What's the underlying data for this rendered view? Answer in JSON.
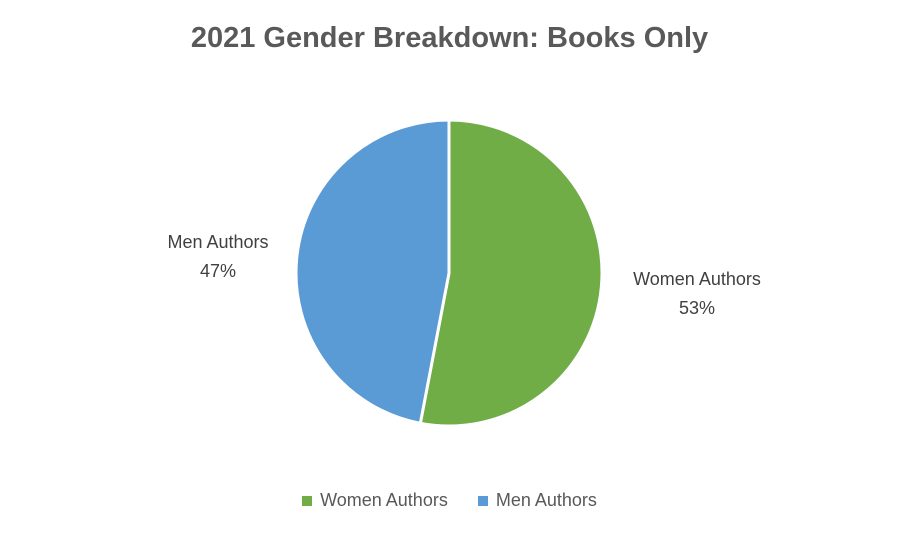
{
  "chart_data": {
    "type": "pie",
    "title": "2021 Gender Breakdown: Books Only",
    "slices": [
      {
        "name": "Women Authors",
        "value": 53,
        "value_label": "53%",
        "color": "#70AD47"
      },
      {
        "name": "Men Authors",
        "value": 47,
        "value_label": "47%",
        "color": "#5B9BD5"
      }
    ],
    "legend_position": "bottom",
    "start_angle_deg": 0,
    "direction": "clockwise"
  },
  "colors": {
    "title": "#595959",
    "label": "#404040",
    "border": "#ffffff"
  }
}
